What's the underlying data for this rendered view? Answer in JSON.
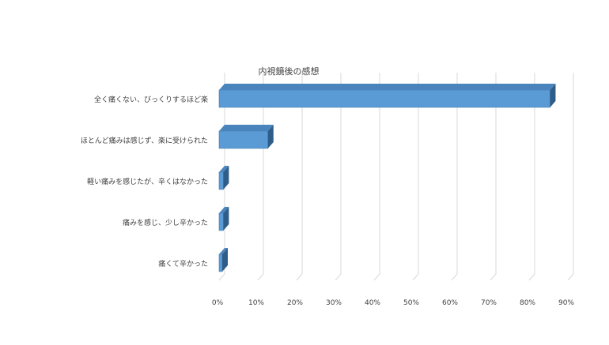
{
  "chart_data": {
    "type": "bar",
    "orientation": "horizontal",
    "three_d": true,
    "title": "内視鏡後の感想",
    "xlabel": "",
    "ylabel": "",
    "categories": [
      "全く痛くない、びっくりするほど楽",
      "ほとんど痛みは感じず、楽に受けられた",
      "軽い痛みを感じたが、辛くはなかった",
      "痛みを感じ、少し辛かった",
      "痛くて辛かった"
    ],
    "values": [
      85.4,
      12.6,
      1.1,
      1.1,
      0.5
    ],
    "xlim": [
      0,
      90
    ],
    "x_ticks": [
      "0%",
      "10%",
      "20%",
      "30%",
      "40%",
      "50%",
      "60%",
      "70%",
      "80%",
      "90%"
    ],
    "grid": true,
    "legend": "none",
    "colors": {
      "bar_front": "#5b9bd5",
      "bar_top": "#4a84bd",
      "bar_side": "#2f5d8a",
      "grid": "#d9d9d9",
      "text": "#404040",
      "background": "#ffffff"
    }
  }
}
